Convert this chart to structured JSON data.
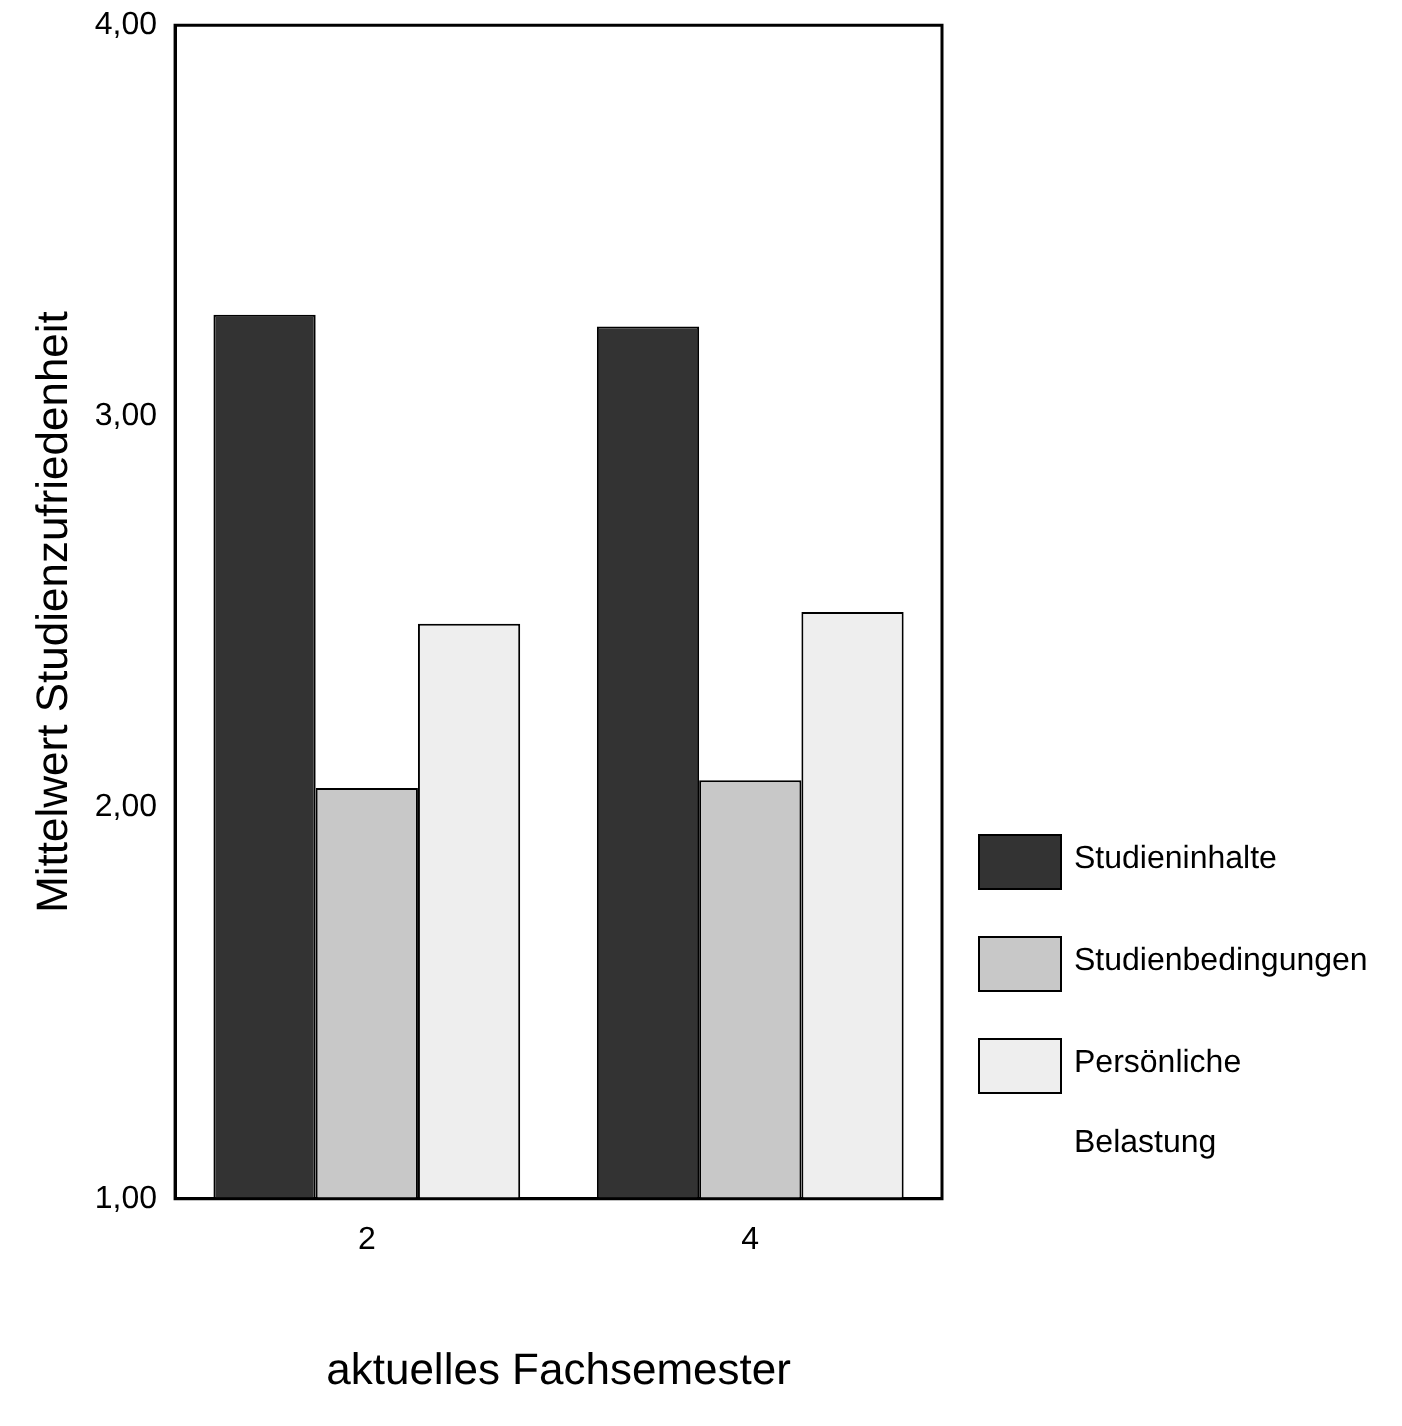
{
  "chart_data": {
    "type": "bar",
    "xlabel": "aktuelles Fachsemester",
    "ylabel": "Mittelwert Studienzufriedenheit",
    "categories": [
      "2",
      "4"
    ],
    "series": [
      {
        "name": "Studieninhalte",
        "color": "#333333",
        "values": [
          3.26,
          3.23
        ]
      },
      {
        "name": "Studienbedingungen",
        "color": "#c8c8c8",
        "values": [
          2.05,
          2.07
        ]
      },
      {
        "name": "Persönliche Belastung",
        "color": "#eeeeee",
        "values": [
          2.47,
          2.5
        ]
      }
    ],
    "ylim": [
      1,
      4
    ],
    "yticks": [
      {
        "value": 1,
        "label": "1,00"
      },
      {
        "value": 2,
        "label": "2,00"
      },
      {
        "value": 3,
        "label": "3,00"
      },
      {
        "value": 4,
        "label": "4,00"
      }
    ],
    "grid": false,
    "legend": "right"
  }
}
